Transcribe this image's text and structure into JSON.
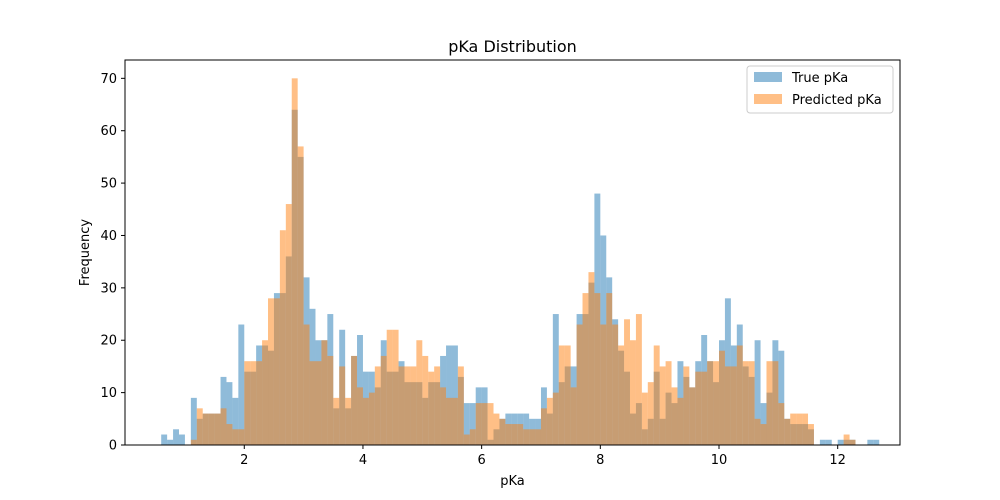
{
  "chart_data": {
    "type": "bar",
    "title": "pKa Distribution",
    "xlabel": "pKa",
    "ylabel": "Frequency",
    "xlim": [
      -0.01,
      13.05
    ],
    "ylim": [
      0,
      73.5
    ],
    "x_ticks": [
      2,
      4,
      6,
      8,
      10,
      12
    ],
    "y_ticks": [
      0,
      10,
      20,
      30,
      40,
      50,
      60,
      70
    ],
    "grid": false,
    "legend_position": "top-right",
    "bin_start": 0.6,
    "bin_width": 0.1,
    "series": [
      {
        "name": "True pKa",
        "color": "#1f77b4",
        "opacity": 0.5,
        "values": [
          2,
          1,
          3,
          2,
          0,
          9,
          5,
          6,
          6,
          6,
          13,
          12,
          9,
          23,
          14,
          14,
          19,
          19,
          18,
          29,
          29,
          36,
          64,
          55,
          32,
          26,
          20,
          20,
          25,
          7,
          22,
          7,
          17,
          21,
          14,
          14,
          11,
          20,
          14,
          14,
          16,
          12,
          12,
          12,
          9,
          12,
          12,
          17,
          19,
          19,
          13,
          8,
          8,
          11,
          11,
          1,
          3,
          5,
          6,
          6,
          6,
          6,
          5,
          5,
          11,
          6,
          25,
          12,
          15,
          15,
          25,
          25,
          31,
          48,
          40,
          32,
          24,
          18,
          14,
          6,
          8,
          3,
          5,
          14,
          5,
          10,
          8,
          16,
          13,
          11,
          16,
          21,
          16,
          12,
          20,
          28,
          19,
          23,
          15,
          13,
          20,
          8,
          10,
          20,
          18,
          5,
          4,
          4,
          4,
          3,
          0,
          1,
          1,
          0,
          1,
          1,
          1,
          0,
          0,
          1,
          1
        ],
        "note": ""
      },
      {
        "name": "Predicted pKa",
        "color": "#ff7f0e",
        "opacity": 0.5,
        "values": [
          0,
          0,
          0,
          0,
          0,
          1,
          7,
          6,
          6,
          6,
          7,
          4,
          3,
          3,
          16,
          16,
          16,
          20,
          28,
          28,
          41,
          46,
          70,
          57,
          23,
          16,
          16,
          20,
          17,
          9,
          15,
          9,
          17,
          11,
          9,
          10,
          15,
          17,
          22,
          22,
          15,
          15,
          15,
          20,
          17,
          14,
          15,
          11,
          9,
          9,
          15,
          2,
          3,
          8,
          8,
          8,
          6,
          5,
          4,
          4,
          4,
          3,
          3,
          3,
          7,
          9,
          10,
          19,
          19,
          11,
          23,
          29,
          33,
          29,
          23,
          29,
          23,
          19,
          24,
          20,
          25,
          10,
          12,
          19,
          15,
          16,
          11,
          9,
          15,
          11,
          14,
          14,
          16,
          16,
          18,
          15,
          15,
          19,
          16,
          16,
          5,
          4,
          16,
          16,
          8,
          5,
          6,
          6,
          6,
          4,
          0,
          0,
          0,
          0,
          0,
          2,
          1,
          0,
          0,
          0,
          0
        ]
      }
    ]
  }
}
